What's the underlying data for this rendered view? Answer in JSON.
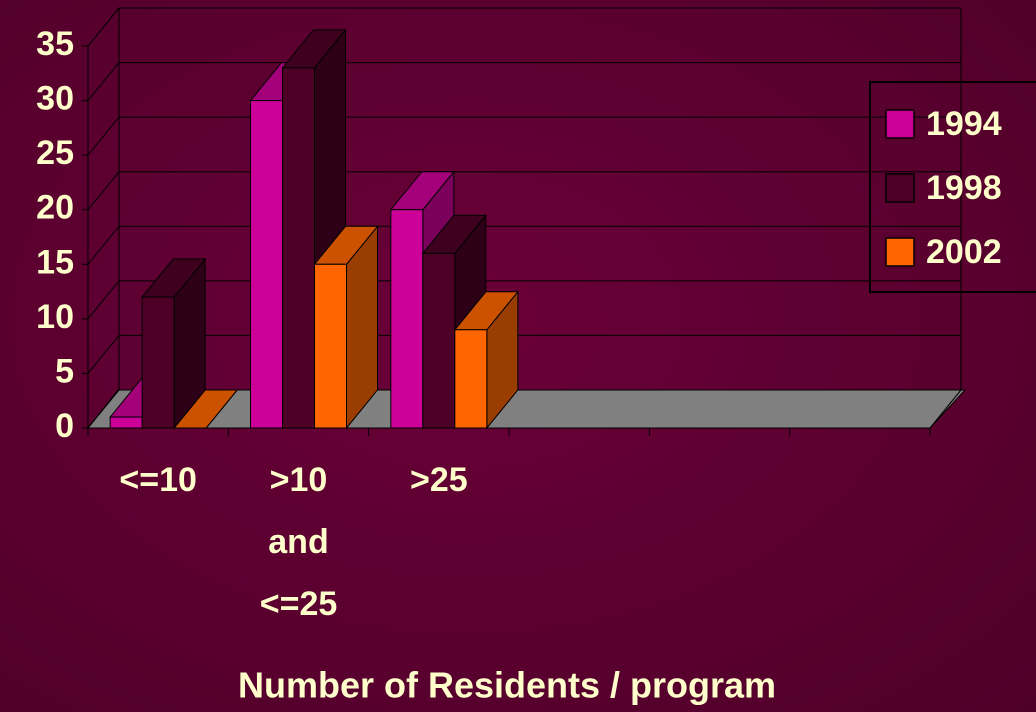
{
  "chart_data": {
    "type": "bar3d",
    "x_label": "Number of Residents / program",
    "categories": [
      "<=10",
      ">10 and <=25",
      ">25",
      null,
      null,
      null
    ],
    "series": [
      {
        "name": "1994",
        "color": "#cc0099",
        "values": [
          1,
          30,
          20,
          null,
          null,
          null
        ]
      },
      {
        "name": "1998",
        "color": "#4d0026",
        "values": [
          12,
          33,
          16,
          null,
          null,
          null
        ]
      },
      {
        "name": "2002",
        "color": "#ff6600",
        "values": [
          0,
          15,
          9,
          null,
          null,
          null
        ]
      }
    ],
    "ylim": [
      0,
      35
    ],
    "yticks": [
      0,
      5,
      10,
      15,
      20,
      25,
      30,
      35
    ],
    "grid": true,
    "legend": "right"
  }
}
